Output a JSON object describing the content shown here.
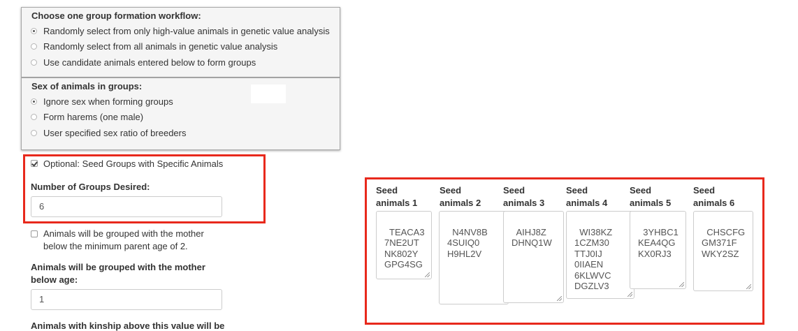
{
  "workflow": {
    "label": "Choose one group formation workflow:",
    "options": [
      {
        "label": "Randomly select from only high-value animals in genetic value analysis",
        "selected": true
      },
      {
        "label": "Randomly select from all animals in genetic value analysis",
        "selected": false
      },
      {
        "label": "Use candidate animals entered below to form groups",
        "selected": false
      }
    ]
  },
  "sex": {
    "label": "Sex of animals in groups:",
    "options": [
      {
        "label": "Ignore sex when forming groups",
        "selected": true
      },
      {
        "label": "Form harems (one male)",
        "selected": false
      },
      {
        "label": "User specified sex ratio of breeders",
        "selected": false
      }
    ]
  },
  "seed_option": {
    "label": "Optional: Seed Groups with Specific Animals",
    "checked": true
  },
  "num_groups": {
    "label": "Number of Groups Desired:",
    "value": "6"
  },
  "mother_option": {
    "label_line1": "Animals will be grouped with the mother",
    "label_line2": "below the minimum parent age of 2.",
    "checked": false
  },
  "mother_age": {
    "label_line1": "Animals will be grouped with the mother",
    "label_line2": "below age:",
    "value": "1"
  },
  "kinship_label": "Animals with kinship above this value will be",
  "seed_groups": [
    {
      "h1": "Seed",
      "h2": "animals 1",
      "animals": "TEACA3\n7NE2UT\nNK802Y\nGPG4SG"
    },
    {
      "h1": "Seed",
      "h2": "animals 2",
      "animals": "N4NV8B\n4SUIQ0\nH9HL2V"
    },
    {
      "h1": "Seed",
      "h2": "animals 3",
      "animals": "AIHJ8Z\nDHNQ1W"
    },
    {
      "h1": "Seed",
      "h2": "animals 4",
      "animals": "WI38KZ\n1CZM30\nTTJ0IJ\n0IIAEN\n6KLWVC\nDGZLV3"
    },
    {
      "h1": "Seed",
      "h2": "animals 5",
      "animals": "3YHBC1\nKEA4QG\nKX0RJ3"
    },
    {
      "h1": "Seed",
      "h2": "animals 6",
      "animals": "CHSCFG\nGM371F\nWKY2SZ"
    }
  ],
  "colors": {
    "highlight_border": "#e8291c",
    "panel_bg": "#f5f5f5"
  }
}
